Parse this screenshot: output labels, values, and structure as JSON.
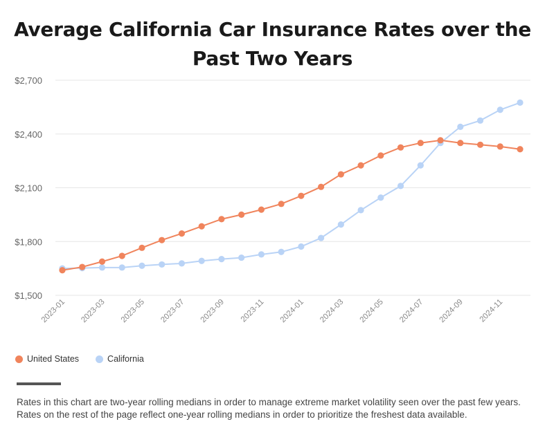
{
  "colors": {
    "us": "#f0845c",
    "ca": "#b9d3f6",
    "grid": "#e6e6e6",
    "axis_text": "#666666"
  },
  "chart_data": {
    "type": "line",
    "title": "Average California Car Insurance Rates over the Past Two Years",
    "title_lines": [
      "Average California Car Insurance Rates over the",
      "Past Two Years"
    ],
    "x": [
      "2023-01",
      "2023-02",
      "2023-03",
      "2023-04",
      "2023-05",
      "2023-06",
      "2023-07",
      "2023-08",
      "2023-09",
      "2023-10",
      "2023-11",
      "2023-12",
      "2024-01",
      "2024-02",
      "2024-03",
      "2024-04",
      "2024-05",
      "2024-06",
      "2024-07",
      "2024-08",
      "2024-09",
      "2024-10",
      "2024-11",
      "2024-12"
    ],
    "x_tick_labels": [
      "2023-01",
      "2023-03",
      "2023-05",
      "2023-07",
      "2023-09",
      "2023-11",
      "2024-01",
      "2024-03",
      "2024-05",
      "2024-07",
      "2024-09",
      "2024-11"
    ],
    "y_tick_labels": [
      "$1,500",
      "$1,800",
      "$2,100",
      "$2,400",
      "$2,700"
    ],
    "y_ticks": [
      1500,
      1800,
      2100,
      2400,
      2700
    ],
    "ylim": [
      1500,
      2700
    ],
    "grid": true,
    "legend_position": "bottom-left",
    "series": [
      {
        "name": "United States",
        "values": [
          1640,
          1658,
          1688,
          1720,
          1765,
          1808,
          1845,
          1885,
          1925,
          1950,
          1978,
          2010,
          2055,
          2105,
          2175,
          2225,
          2280,
          2325,
          2350,
          2365,
          2350,
          2340,
          2330,
          2315
        ]
      },
      {
        "name": "California",
        "values": [
          1650,
          1652,
          1655,
          1655,
          1665,
          1672,
          1678,
          1692,
          1702,
          1710,
          1728,
          1742,
          1772,
          1820,
          1895,
          1975,
          2045,
          2110,
          2225,
          2350,
          2440,
          2475,
          2535,
          2575
        ]
      }
    ]
  },
  "footnote": "Rates in this chart are two-year rolling medians in order to manage extreme market volatility seen over the past few years. Rates on the rest of the page reflect one-year rolling medians in order to prioritize the freshest data available."
}
